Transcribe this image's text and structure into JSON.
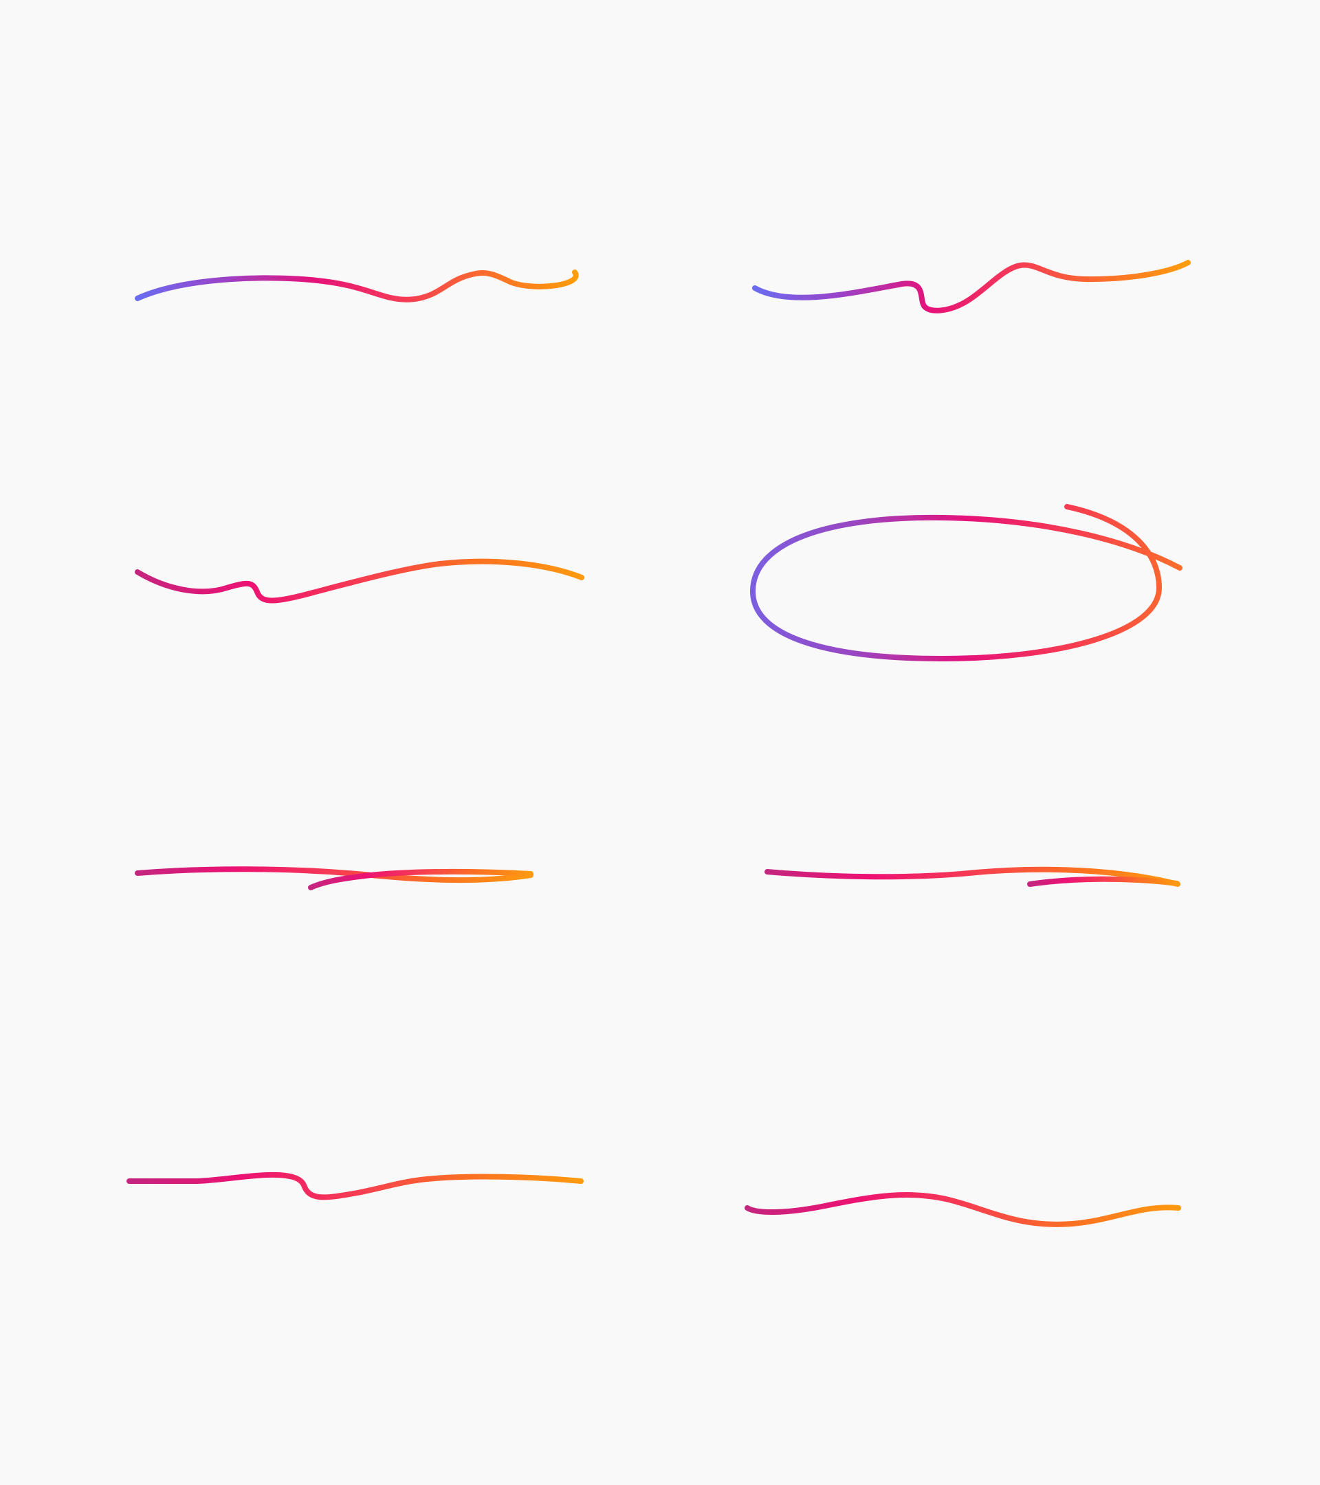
{
  "canvas": {
    "background": "#f9f9f9"
  },
  "gradient_palettes": {
    "sunset": [
      "#6b6cf0",
      "#9b42c7",
      "#e5127a",
      "#f43a57",
      "#fb6e2c",
      "#ff9d0a"
    ],
    "warm": [
      "#c4257f",
      "#ec1273",
      "#f63c52",
      "#fb7023",
      "#ff9a0f"
    ],
    "ring": [
      "#7b5fe0",
      "#9b44c0",
      "#e5127a",
      "#f63d50",
      "#fb6d2a"
    ]
  },
  "strokes": [
    {
      "name": "squiggle-stroke-1",
      "palette": "sunset"
    },
    {
      "name": "squiggle-stroke-2",
      "palette": "sunset"
    },
    {
      "name": "squiggle-stroke-3",
      "palette": "warm"
    },
    {
      "name": "ellipse-stroke",
      "palette": "ring"
    },
    {
      "name": "double-line-stroke-1",
      "palette": "warm"
    },
    {
      "name": "double-line-stroke-2",
      "palette": "warm"
    },
    {
      "name": "squiggle-stroke-4",
      "palette": "warm"
    },
    {
      "name": "wave-stroke",
      "palette": "warm"
    }
  ]
}
